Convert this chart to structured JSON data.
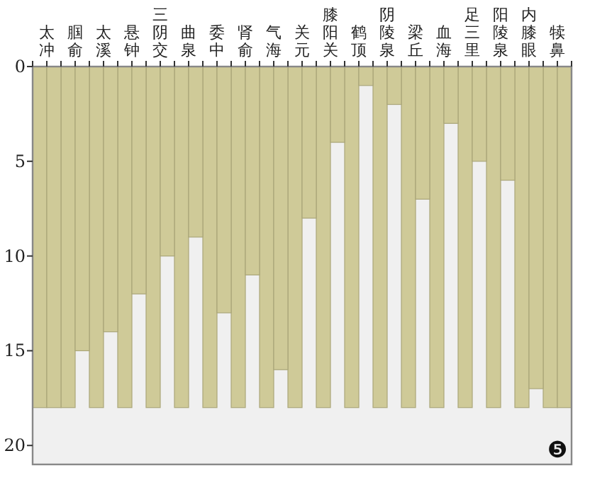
{
  "chart_data": {
    "type": "bar",
    "categories": [
      "太冲",
      "腘俞",
      "太溪",
      "悬钟",
      "三阴交",
      "曲泉",
      "委中",
      "肾俞",
      "气海",
      "关元",
      "膝阳关",
      "鹤顶",
      "阴陵泉",
      "梁丘",
      "血海",
      "足三里",
      "阳陵泉",
      "内膝眼",
      "犊鼻"
    ],
    "series": [
      {
        "color": "#cfca98",
        "values": [
          18,
          18,
          18,
          18,
          18,
          18,
          18,
          18,
          18,
          18,
          18,
          18,
          18,
          18,
          18,
          18,
          18,
          18,
          18
        ]
      },
      {
        "color": "#cfca98",
        "values": [
          18,
          15,
          14,
          12,
          10,
          9,
          13,
          11,
          16,
          8,
          4,
          1,
          2,
          7,
          3,
          5,
          6,
          17,
          18
        ]
      }
    ],
    "ylim": [
      21,
      0
    ],
    "yticks": [
      0,
      5,
      10,
      15,
      20
    ],
    "grid": false,
    "annotations": [
      "❺"
    ]
  }
}
